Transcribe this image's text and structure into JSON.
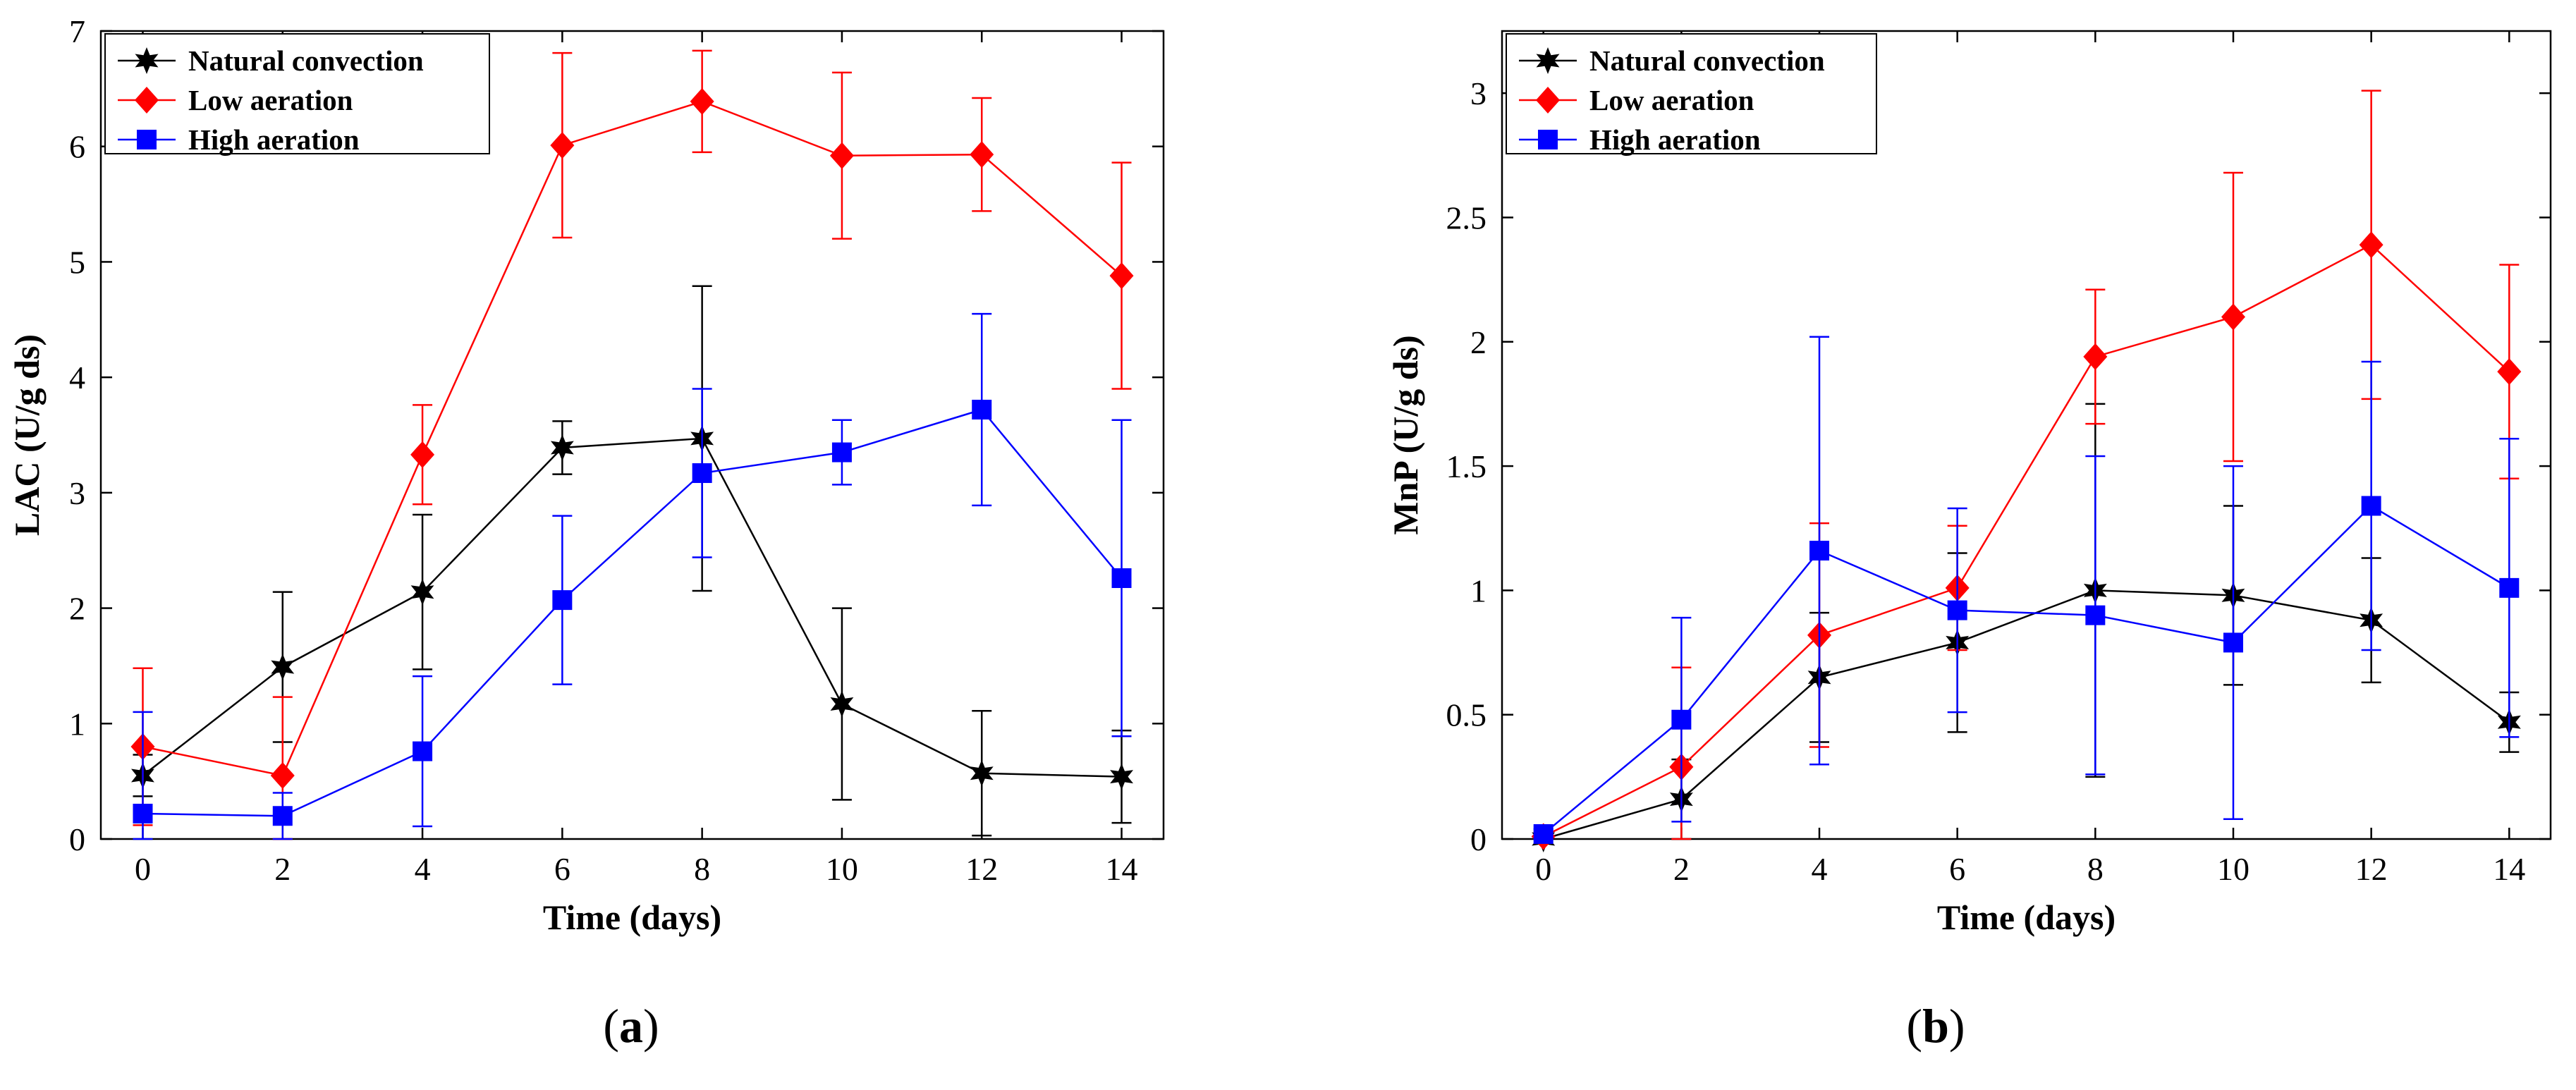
{
  "figure": {
    "panels": [
      "a",
      "b"
    ]
  },
  "colors": {
    "natural_convection": "#000000",
    "low_aeration": "#FF0000",
    "high_aeration": "#0000FF"
  },
  "chart_data": [
    {
      "type": "line",
      "panel_label": "a",
      "title": "",
      "xlabel": "Time (days)",
      "ylabel": "LAC (U/g ds)",
      "xlim": [
        -0.6,
        14.6
      ],
      "ylim": [
        0,
        7
      ],
      "xticks": [
        0,
        2,
        4,
        6,
        8,
        10,
        12,
        14
      ],
      "yticks": [
        0,
        1,
        2,
        3,
        4,
        5,
        6,
        7
      ],
      "legend_position": "top-left",
      "x": [
        0,
        2,
        4,
        6,
        8,
        10,
        12,
        14
      ],
      "series": [
        {
          "name": "Natural convection",
          "marker": "star",
          "color": "#000000",
          "values": [
            0.55,
            1.49,
            2.14,
            3.39,
            3.47,
            1.17,
            0.57,
            0.54
          ],
          "errors": [
            0.18,
            0.65,
            0.67,
            0.23,
            1.32,
            0.83,
            0.54,
            0.4
          ]
        },
        {
          "name": "Low aeration",
          "marker": "diamond",
          "color": "#FF0000",
          "values": [
            0.8,
            0.55,
            3.33,
            6.01,
            6.39,
            5.92,
            5.93,
            4.88
          ],
          "errors": [
            0.68,
            0.68,
            0.43,
            0.8,
            0.44,
            0.72,
            0.49,
            0.98
          ]
        },
        {
          "name": "High aeration",
          "marker": "square",
          "color": "#0000FF",
          "values": [
            0.22,
            0.2,
            0.76,
            2.07,
            3.17,
            3.35,
            3.72,
            2.26
          ],
          "errors": [
            0.88,
            0.2,
            0.65,
            0.73,
            0.73,
            0.28,
            0.83,
            1.37
          ]
        }
      ]
    },
    {
      "type": "line",
      "panel_label": "b",
      "title": "",
      "xlabel": "Time (days)",
      "ylabel": "MnP (U/g ds)",
      "xlim": [
        -0.6,
        14.6
      ],
      "ylim": [
        0,
        3.25
      ],
      "xticks": [
        0,
        2,
        4,
        6,
        8,
        10,
        12,
        14
      ],
      "yticks": [
        0,
        0.5,
        1,
        1.5,
        2,
        2.5,
        3
      ],
      "yticklabels": [
        "0",
        "0.5",
        "1",
        "1.5",
        "2",
        "2.5",
        "3"
      ],
      "legend_position": "top-left",
      "x": [
        0,
        2,
        4,
        6,
        8,
        10,
        12,
        14
      ],
      "series": [
        {
          "name": "Natural convection",
          "marker": "star",
          "color": "#000000",
          "values": [
            0.0,
            0.16,
            0.65,
            0.79,
            1.0,
            0.98,
            0.88,
            0.47
          ],
          "errors": [
            0.02,
            0.16,
            0.26,
            0.36,
            0.75,
            0.36,
            0.25,
            0.12
          ]
        },
        {
          "name": "Low aeration",
          "marker": "diamond",
          "color": "#FF0000",
          "values": [
            0.01,
            0.29,
            0.82,
            1.01,
            1.94,
            2.1,
            2.39,
            1.88
          ],
          "errors": [
            0.02,
            0.4,
            0.45,
            0.25,
            0.27,
            0.58,
            0.62,
            0.43
          ]
        },
        {
          "name": "High aeration",
          "marker": "square",
          "color": "#0000FF",
          "values": [
            0.02,
            0.48,
            1.16,
            0.92,
            0.9,
            0.79,
            1.34,
            1.01
          ],
          "errors": [
            0.02,
            0.41,
            0.86,
            0.41,
            0.64,
            0.71,
            0.58,
            0.6
          ]
        }
      ]
    }
  ]
}
